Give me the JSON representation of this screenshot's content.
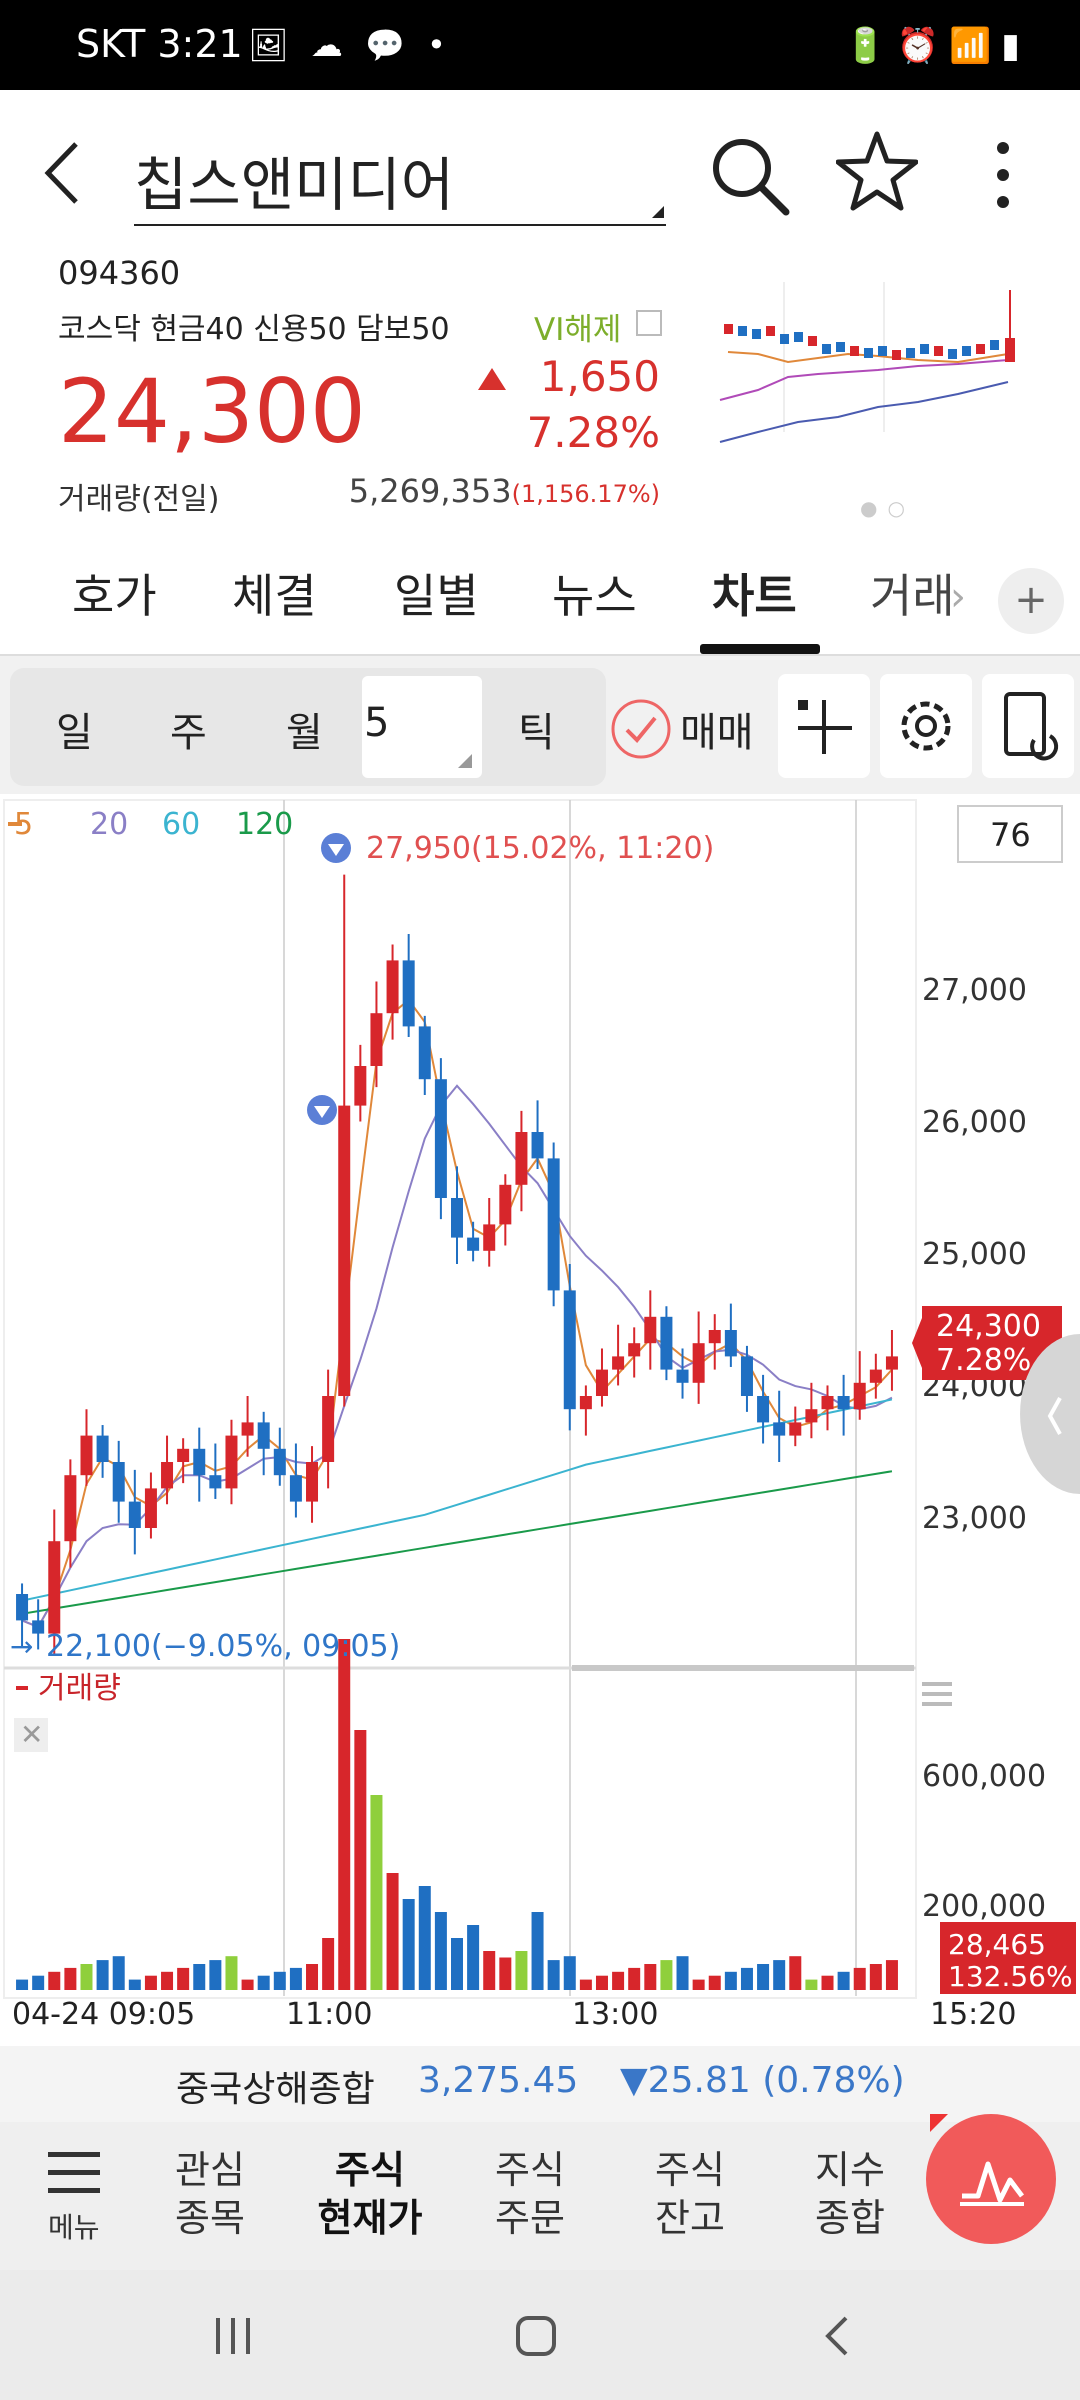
{
  "status_bar": {
    "carrier_time": "SKT 3:21",
    "left_icons": "🖼 ☁ 💬 •",
    "right_icons": "🔋⏰📶▮"
  },
  "header": {
    "title": "칩스앤미디어"
  },
  "quote": {
    "code": "094360",
    "market_info": "코스닥 현금40 신용50 담보50",
    "vi": "VI해제",
    "price": "24,300",
    "change": "1,650",
    "change_pct": "7.28%",
    "volume_label": "거래량(전일)",
    "volume": "5,269,353",
    "volume_ratio": "(1,156.17%)"
  },
  "tabs": [
    {
      "label": "호가"
    },
    {
      "label": "체결"
    },
    {
      "label": "일별"
    },
    {
      "label": "뉴스"
    },
    {
      "label": "차트",
      "active": true
    },
    {
      "label": "거래"
    }
  ],
  "tabs_more": "+",
  "chart_toolbar": {
    "period_buttons": [
      "일",
      "주",
      "월"
    ],
    "minute_value": "5",
    "tick": "틱",
    "trade_label": "매매"
  },
  "chart": {
    "ma_legend": [
      {
        "label": "5",
        "color": "#e0883a"
      },
      {
        "label": "20",
        "color": "#8a7fc6"
      },
      {
        "label": "60",
        "color": "#3bb4d0"
      },
      {
        "label": "120",
        "color": "#1a9a4a"
      }
    ],
    "count_box": "76",
    "high_annotation": "27,950(15.02%, 11:20)",
    "low_annotation": "22,100(−9.05%, 09:05)",
    "price_ticks": [
      "27,000",
      "26,000",
      "25,000",
      "24,000",
      "23,000"
    ],
    "current_price_tag": {
      "price": "24,300",
      "pct": "7.28%"
    },
    "volume_label": "거래량",
    "volume_ticks": [
      "600,000",
      "200,000"
    ],
    "current_volume_tag": {
      "value": "28,465",
      "pct": "132.56%"
    },
    "time_labels": [
      "04-24 09:05",
      "11:00",
      "13:00",
      "15:20"
    ],
    "colors": {
      "up": "#d7262b",
      "down": "#1f6fc2",
      "volume_neutral": "#8fcf3c"
    }
  },
  "chart_data": {
    "type": "candlestick",
    "interval": "5-minute",
    "x_labels": [
      "04-24 09:05",
      "11:00",
      "13:00",
      "15:20"
    ],
    "ylim": [
      22000,
      28000
    ],
    "high": 27950,
    "low": 22100,
    "last": 24300,
    "series": [
      {
        "name": "5",
        "type": "line"
      },
      {
        "name": "20",
        "type": "line"
      },
      {
        "name": "60",
        "type": "line"
      },
      {
        "name": "120",
        "type": "line"
      },
      {
        "name": "거래량",
        "type": "bar",
        "last_value": 28465
      }
    ]
  },
  "index_bar": {
    "name": "중국상해종합",
    "value": "3,275.45",
    "change": "▼25.81 (0.78%)"
  },
  "bottom_nav": {
    "menu": "메뉴",
    "items": [
      {
        "l1": "관심",
        "l2": "종목"
      },
      {
        "l1": "주식",
        "l2": "현재가",
        "active": true
      },
      {
        "l1": "주식",
        "l2": "주문"
      },
      {
        "l1": "주식",
        "l2": "잔고"
      },
      {
        "l1": "지수",
        "l2": "종합"
      }
    ]
  }
}
